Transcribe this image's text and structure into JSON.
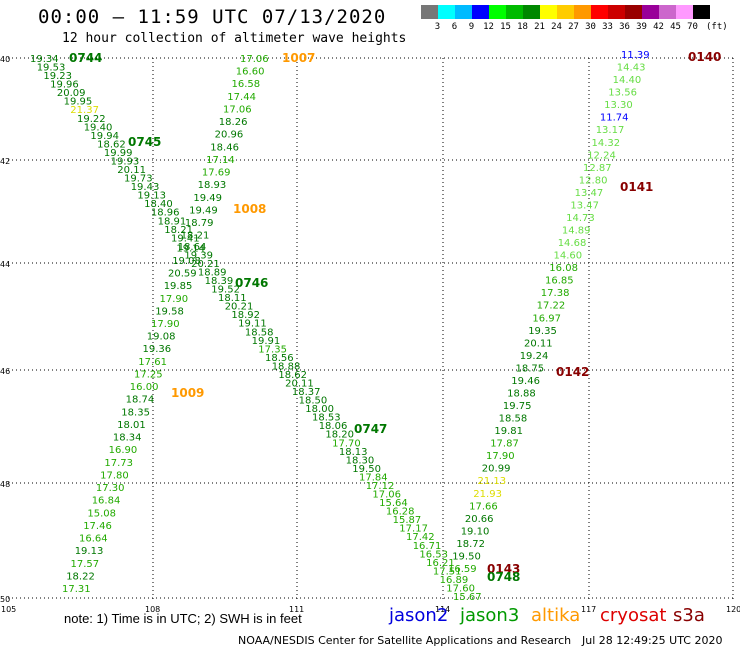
{
  "header": {
    "title": "00:00 – 11:59 UTC 07/13/2020",
    "subtitle": "12 hour collection of altimeter wave heights"
  },
  "color_scale": {
    "labels": [
      "3",
      "6",
      "9",
      "12",
      "15",
      "18",
      "21",
      "24",
      "27",
      "30",
      "33",
      "36",
      "39",
      "42",
      "45",
      "70",
      "(ft)"
    ],
    "colors": [
      "#777777",
      "#00ffff",
      "#00bbff",
      "#0000ff",
      "#00ff00",
      "#00bb00",
      "#008800",
      "#ffff00",
      "#ffcc00",
      "#ff9900",
      "#ff0000",
      "#cc0000",
      "#990000",
      "#990099",
      "#cc66cc",
      "#ff99ff",
      "#000000"
    ]
  },
  "axes": {
    "lon_ticks": [
      "105",
      "108",
      "111",
      "114",
      "117",
      "120"
    ],
    "lat_ticks": [
      "40",
      "42",
      "44",
      "46",
      "48",
      "50"
    ]
  },
  "tracks": {
    "colors": {
      "light": "#66dd44",
      "mid": "#22aa00",
      "dark": "#007700",
      "yellow": "#dddd00",
      "blue": "#0000ff",
      "orange": "#ff9900",
      "maroon": "#880000"
    },
    "t0744": [
      "19.34",
      "19.53",
      "19.23",
      "19.96",
      "20.09",
      "19.95",
      "21.37",
      "19.22",
      "19.40",
      "19.94",
      "18.62",
      "19.99",
      "19.93",
      "20.11",
      "19.73",
      "19.43",
      "19.13",
      "18.40",
      "18.96",
      "18.91",
      "18.21",
      "19.41",
      "18.64",
      "19.39",
      "20.21",
      "18.89",
      "18.39",
      "19.52",
      "18.11",
      "20.21",
      "18.92",
      "19.11",
      "18.58",
      "19.91",
      "17.35",
      "18.56",
      "18.88",
      "18.62",
      "20.11",
      "18.37",
      "18.50",
      "18.00",
      "18.53",
      "18.06",
      "18.20",
      "17.70",
      "18.13",
      "18.30",
      "19.50",
      "17.84",
      "17.12",
      "17.06",
      "15.64",
      "16.28",
      "15.87",
      "17.17",
      "17.42",
      "16.71",
      "16.53",
      "16.21",
      "17.51",
      "16.89",
      "17.60",
      "15.67"
    ],
    "t1007": [
      "17.06",
      "16.60",
      "16.58",
      "17.44",
      "17.06",
      "18.26",
      "20.96",
      "18.46",
      "17.14",
      "17.69",
      "18.93",
      "19.49",
      "19.49",
      "18.79",
      "18.21",
      "19.14",
      "19.08",
      "20.59",
      "19.85",
      "17.90",
      "19.58",
      "17.90",
      "19.08",
      "19.36",
      "17.61",
      "17.25",
      "16.00",
      "18.74",
      "18.35",
      "18.01",
      "18.34",
      "16.90",
      "17.73",
      "17.80",
      "17.30",
      "16.84",
      "15.08",
      "17.46",
      "16.64",
      "19.13",
      "17.57",
      "18.22",
      "17.31"
    ],
    "t0140": [
      "11.39",
      "14.43",
      "14.40",
      "13.56",
      "13.30",
      "11.74",
      "13.17",
      "14.32",
      "12.24",
      "12.87",
      "12.80",
      "13.47",
      "13.47",
      "14.73",
      "14.89",
      "14.68",
      "14.60",
      "16.08",
      "16.85",
      "17.38",
      "17.22",
      "16.97",
      "19.35",
      "20.11",
      "19.24",
      "18.75",
      "19.46",
      "18.88",
      "19.75",
      "18.58",
      "19.81",
      "17.87",
      "17.90",
      "20.99",
      "21.13",
      "21.93",
      "17.66",
      "20.66",
      "19.10",
      "18.72",
      "19.50",
      "16.59"
    ],
    "pass_labels": [
      "0744",
      "1007",
      "0140",
      "0745",
      "1008",
      "0141",
      "0746",
      "0142",
      "1009",
      "0747",
      "0143",
      "0748"
    ]
  },
  "footer": {
    "note": "note: 1) Time is in UTC; 2) SWH is in feet",
    "satellites": [
      {
        "name": "jason2",
        "color": "#0000dd"
      },
      {
        "name": "jason3",
        "color": "#009900"
      },
      {
        "name": "altika",
        "color": "#ff9900"
      },
      {
        "name": "cryosat",
        "color": "#dd0000"
      },
      {
        "name": "s3a",
        "color": "#880000"
      }
    ],
    "credit": "NOAA/NESDIS Center for Satellite Applications and Research",
    "timestamp": "Jul 28 12:49:25 UTC 2020"
  }
}
